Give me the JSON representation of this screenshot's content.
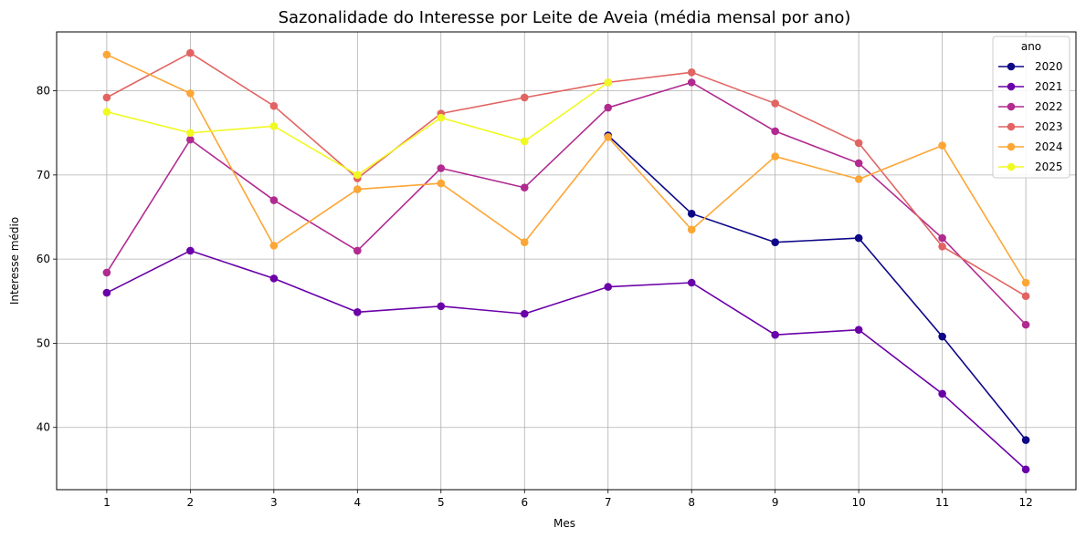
{
  "chart_data": {
    "type": "line",
    "title": "Sazonalidade do Interesse por Leite de Aveia (média mensal por ano)",
    "xlabel": "Mes",
    "ylabel": "Interesse médio",
    "x": [
      1,
      2,
      3,
      4,
      5,
      6,
      7,
      8,
      9,
      10,
      11,
      12
    ],
    "xlim": [
      0.4,
      12.6
    ],
    "ylim": [
      32.6,
      87.0
    ],
    "yticks": [
      40,
      50,
      60,
      70,
      80
    ],
    "grid": true,
    "legend": {
      "title": "ano",
      "placement": "top-right"
    },
    "series": [
      {
        "name": "2020",
        "color": "#0d0887",
        "x": [
          7,
          8,
          9,
          10,
          11,
          12
        ],
        "values": [
          74.7,
          65.4,
          62.0,
          62.5,
          50.8,
          38.5
        ]
      },
      {
        "name": "2021",
        "color": "#6a00a8",
        "x": [
          1,
          2,
          3,
          4,
          5,
          6,
          7,
          8,
          9,
          10,
          11,
          12
        ],
        "values": [
          56.0,
          61.0,
          57.7,
          53.7,
          54.4,
          53.5,
          56.7,
          57.2,
          51.0,
          51.6,
          44.0,
          35.0
        ]
      },
      {
        "name": "2022",
        "color": "#b12a90",
        "x": [
          1,
          2,
          3,
          4,
          5,
          6,
          7,
          8,
          9,
          10,
          11,
          12
        ],
        "values": [
          58.4,
          74.2,
          67.0,
          61.0,
          70.8,
          68.5,
          78.0,
          81.0,
          75.2,
          71.4,
          62.5,
          52.2
        ]
      },
      {
        "name": "2023",
        "color": "#e16462",
        "x": [
          1,
          2,
          3,
          4,
          5,
          6,
          7,
          8,
          9,
          10,
          11,
          12
        ],
        "values": [
          79.2,
          84.5,
          78.2,
          69.6,
          77.3,
          79.2,
          81.0,
          82.2,
          78.5,
          73.8,
          61.5,
          55.6
        ]
      },
      {
        "name": "2024",
        "color": "#fca636",
        "x": [
          1,
          2,
          3,
          4,
          5,
          6,
          7,
          8,
          9,
          10,
          11,
          12
        ],
        "values": [
          84.3,
          79.7,
          61.6,
          68.3,
          69.0,
          62.0,
          74.5,
          63.5,
          72.2,
          69.5,
          73.5,
          57.2
        ]
      },
      {
        "name": "2025",
        "color": "#f0f921",
        "x": [
          1,
          2,
          3,
          4,
          5,
          6,
          7
        ],
        "values": [
          77.5,
          75.0,
          75.8,
          70.0,
          76.8,
          74.0,
          81.0
        ]
      }
    ]
  }
}
